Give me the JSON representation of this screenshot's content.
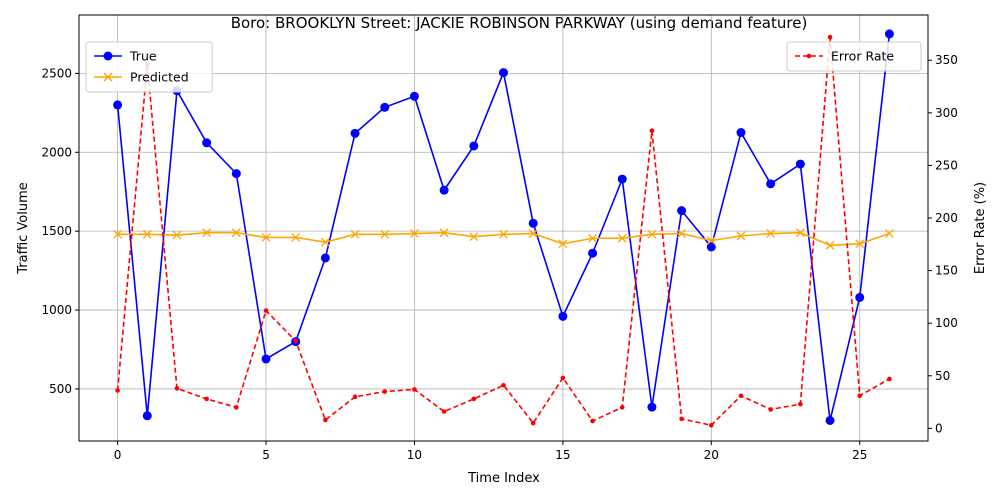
{
  "chart_data": {
    "type": "line",
    "title": "Boro: BROOKLYN Street: JACKIE ROBINSON PARKWAY (using demand feature)",
    "xlabel": "Time Index",
    "ylabel_left": "Traffic Volume",
    "ylabel_right": "Error Rate (%)",
    "x": [
      0,
      1,
      2,
      3,
      4,
      5,
      6,
      7,
      8,
      9,
      10,
      11,
      12,
      13,
      14,
      15,
      16,
      17,
      18,
      19,
      20,
      21,
      22,
      23,
      24,
      25,
      26
    ],
    "xlim": [
      -1.3,
      27.3
    ],
    "ylim_left": [
      170,
      2870
    ],
    "ylim_right": [
      -12,
      393
    ],
    "xticks": [
      0,
      5,
      10,
      15,
      20,
      25
    ],
    "yticks_left": [
      500,
      1000,
      1500,
      2000,
      2500
    ],
    "yticks_right": [
      0,
      50,
      100,
      150,
      200,
      250,
      300,
      350
    ],
    "grid": true,
    "legend_left_placement": "upper-left",
    "legend_right_placement": "upper-right",
    "series": [
      {
        "name": "True",
        "axis": "left",
        "color": "#0000ff",
        "marker": "circle",
        "dash": "solid",
        "values": [
          2300,
          330,
          2390,
          2060,
          1865,
          690,
          800,
          1330,
          2120,
          2285,
          2355,
          1760,
          2040,
          2505,
          1550,
          960,
          1360,
          1830,
          385,
          1630,
          1400,
          2125,
          1800,
          1925,
          300,
          1080,
          2750
        ]
      },
      {
        "name": "Predicted",
        "axis": "left",
        "color": "#ffa500",
        "marker": "x",
        "dash": "solid",
        "values": [
          1480,
          1480,
          1475,
          1490,
          1490,
          1460,
          1460,
          1430,
          1480,
          1480,
          1485,
          1490,
          1465,
          1480,
          1485,
          1420,
          1455,
          1455,
          1480,
          1485,
          1440,
          1470,
          1485,
          1490,
          1410,
          1420,
          1485
        ]
      },
      {
        "name": "Error Rate",
        "axis": "right",
        "color": "#ff0000",
        "marker": "dot",
        "dash": "dashed",
        "values": [
          36,
          346,
          38,
          28,
          20,
          112,
          83,
          8,
          30,
          35,
          37,
          16,
          28,
          41,
          5,
          48,
          7,
          20,
          283,
          9,
          3,
          31,
          18,
          23,
          372,
          31,
          47
        ]
      }
    ]
  }
}
